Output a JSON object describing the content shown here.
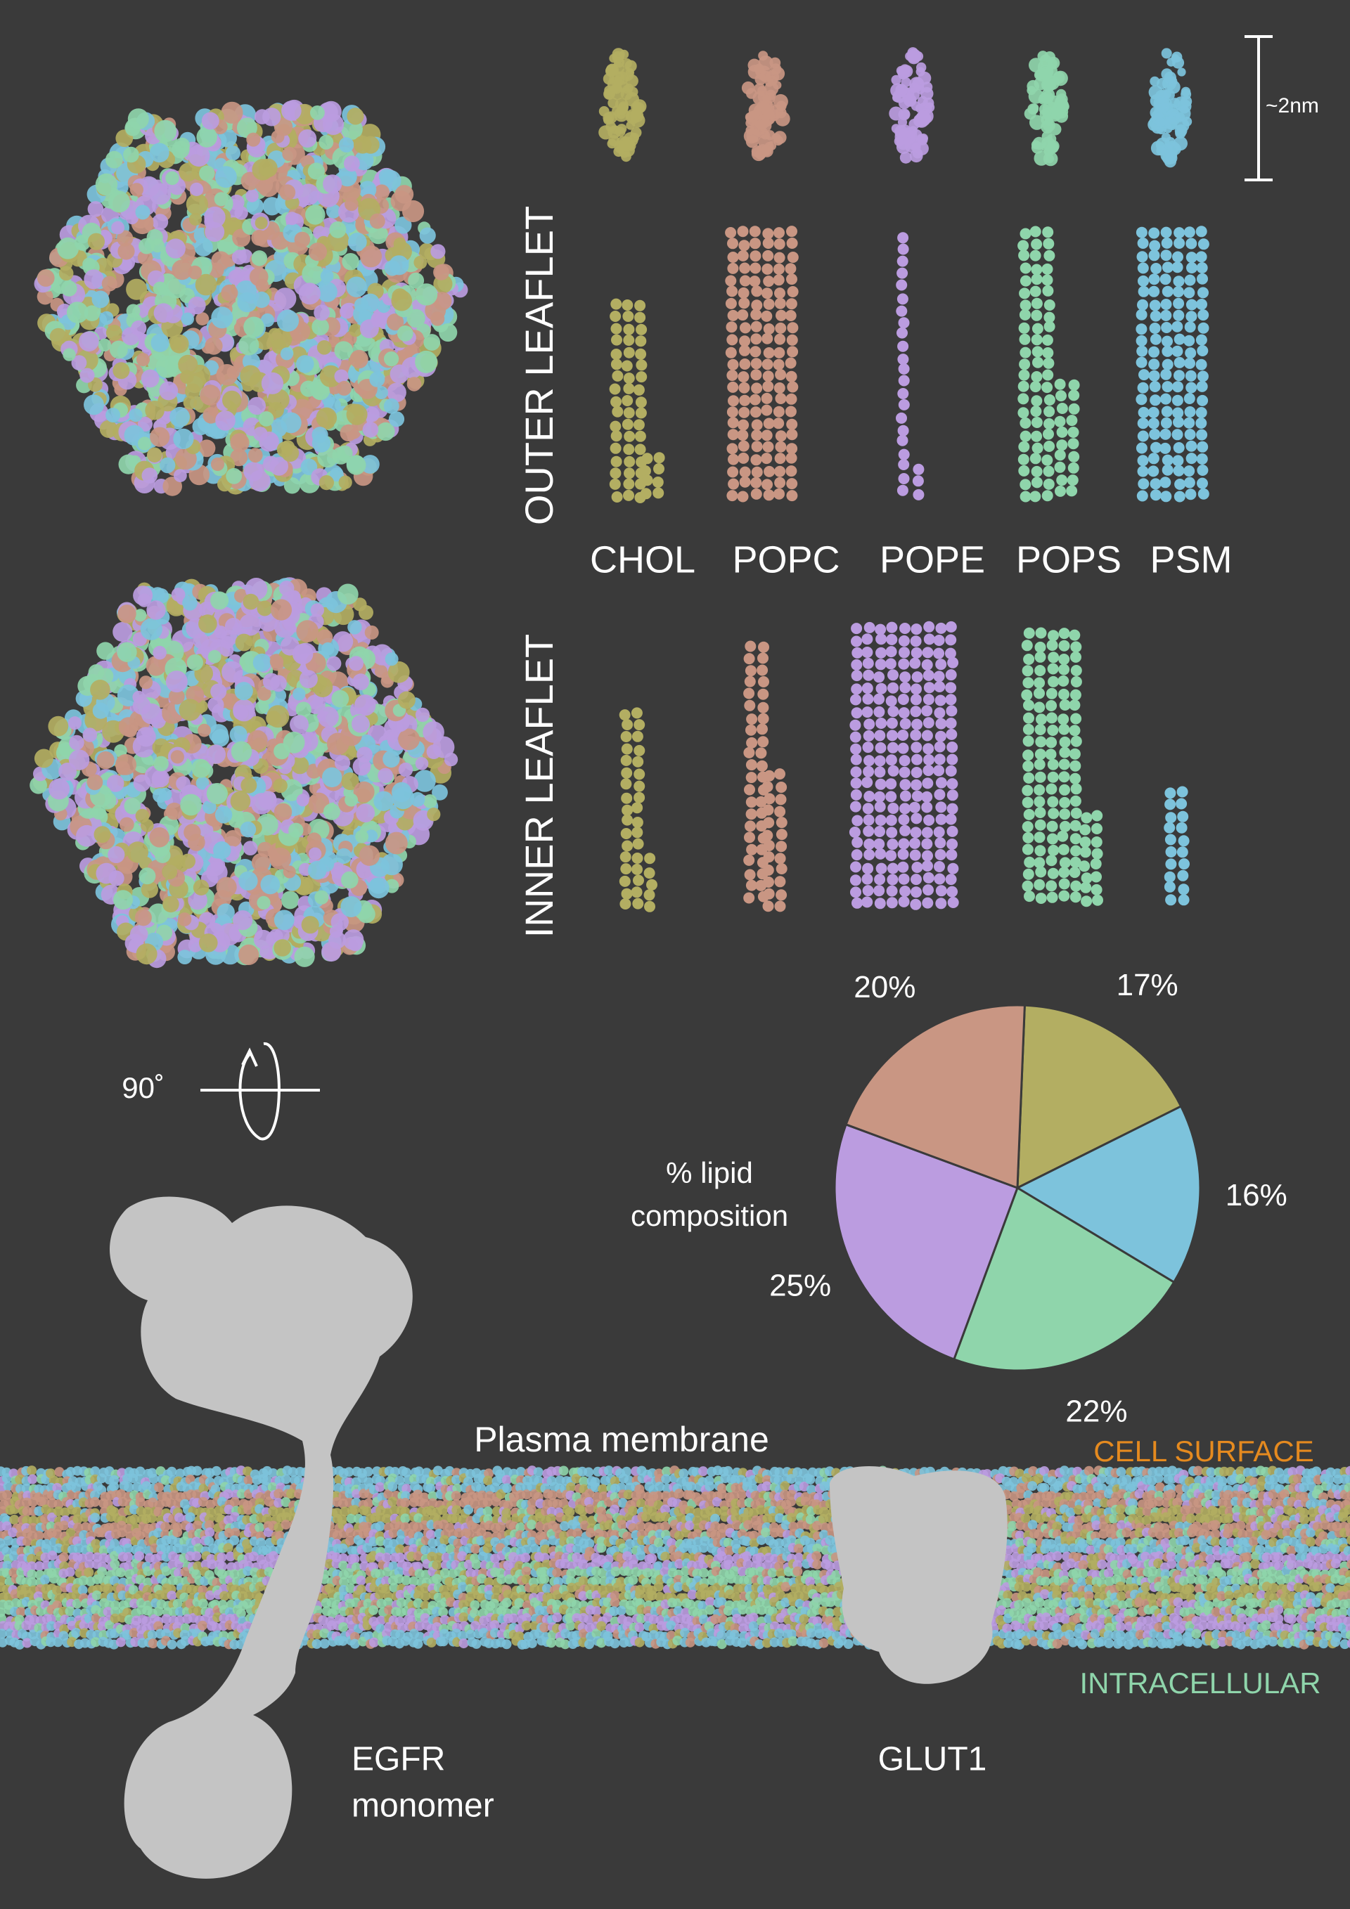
{
  "lipids": [
    {
      "name": "CHOL",
      "color": "#b3ae62"
    },
    {
      "name": "POPC",
      "color": "#c99683"
    },
    {
      "name": "POPE",
      "color": "#bb9ce0"
    },
    {
      "name": "POPS",
      "color": "#8fd5ab"
    },
    {
      "name": "PSM",
      "color": "#7dc3dc"
    }
  ],
  "scale_label": "~2nm",
  "leaflets": {
    "outer": "OUTER LEAFLET",
    "inner": "INNER LEAFLET"
  },
  "rotation": "90˚",
  "membrane": {
    "title": "Plasma membrane",
    "top": "CELL SURFACE",
    "top_color": "#e58a1f",
    "bottom": "INTRACELLULAR",
    "bottom_color": "#8fd5ab"
  },
  "proteins": {
    "egfr": [
      "EGFR",
      "monomer"
    ],
    "glut1": "GLUT1"
  },
  "chart_data": {
    "type": "pie",
    "title": [
      "% lipid",
      "composition"
    ],
    "values": [
      17,
      16,
      22,
      25,
      20
    ],
    "value_labels": [
      "17%",
      "16%",
      "22%",
      "25%",
      "20%"
    ],
    "colors": [
      "#b3ae62",
      "#7dc3dc",
      "#8fd5ab",
      "#bb9ce0",
      "#c99683"
    ]
  }
}
